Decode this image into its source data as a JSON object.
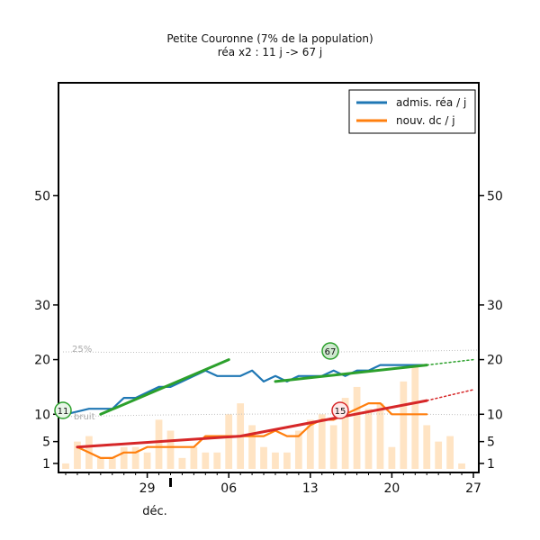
{
  "chart_data": {
    "type": "line",
    "title": "Petite Couronne (7% de la population)",
    "subtitle": "réa x2 : 11 j -> 67 j",
    "xlabel": "",
    "ylabel": "",
    "month_label": "déc.",
    "x_ticks": [
      "29",
      "06",
      "13",
      "20",
      "27"
    ],
    "y_ticks": [
      1,
      5,
      10,
      20,
      30,
      50
    ],
    "ylim": [
      0,
      70
    ],
    "xlim": [
      "2020-11-22",
      "2020-12-27"
    ],
    "legend_position": "top-right",
    "legend": [
      "admis. réa / j",
      "nouv. dc / j"
    ],
    "annotations": {
      "pct25": "25%",
      "noise": "bruit",
      "badge_start": "11",
      "badge_rea": "67",
      "badge_dc": "15"
    },
    "colors": {
      "rea": "#1f77b4",
      "dc": "#ff7f0e",
      "rea_fit": "#2ca02c",
      "dc_fit": "#d62728",
      "bars": "#ffe4c4",
      "band": "#c0c0c0"
    },
    "bars": {
      "x": [
        "2020-11-22",
        "2020-11-23",
        "2020-11-24",
        "2020-11-25",
        "2020-11-26",
        "2020-11-27",
        "2020-11-28",
        "2020-11-29",
        "2020-11-30",
        "2020-12-01",
        "2020-12-02",
        "2020-12-03",
        "2020-12-04",
        "2020-12-05",
        "2020-12-06",
        "2020-12-07",
        "2020-12-08",
        "2020-12-09",
        "2020-12-10",
        "2020-12-11",
        "2020-12-12",
        "2020-12-13",
        "2020-12-14",
        "2020-12-15",
        "2020-12-16",
        "2020-12-17",
        "2020-12-18",
        "2020-12-19",
        "2020-12-20",
        "2020-12-21",
        "2020-12-22",
        "2020-12-23",
        "2020-12-24",
        "2020-12-25",
        "2020-12-26"
      ],
      "values": [
        1,
        5,
        6,
        2,
        2,
        4,
        4,
        3,
        9,
        7,
        2,
        4,
        3,
        3,
        10,
        12,
        8,
        4,
        3,
        3,
        7,
        9,
        10,
        8,
        13,
        15,
        11,
        12,
        4,
        16,
        19,
        8,
        5,
        6,
        1
      ]
    },
    "series": [
      {
        "name": "admis. réa / j",
        "x": [
          "2020-11-22",
          "2020-11-23",
          "2020-11-24",
          "2020-11-25",
          "2020-11-26",
          "2020-11-27",
          "2020-11-28",
          "2020-11-29",
          "2020-11-30",
          "2020-12-01",
          "2020-12-02",
          "2020-12-03",
          "2020-12-04",
          "2020-12-05",
          "2020-12-06",
          "2020-12-07",
          "2020-12-08",
          "2020-12-09",
          "2020-12-10",
          "2020-12-11",
          "2020-12-12",
          "2020-12-13",
          "2020-12-14",
          "2020-12-15",
          "2020-12-16",
          "2020-12-17",
          "2020-12-18",
          "2020-12-19",
          "2020-12-20",
          "2020-12-21",
          "2020-12-22",
          "2020-12-23"
        ],
        "values": [
          10,
          10.5,
          11,
          11,
          11,
          13,
          13,
          14,
          15,
          15,
          16,
          17,
          18,
          17,
          17,
          17,
          18,
          16,
          17,
          16,
          17,
          17,
          17,
          18,
          17,
          18,
          18,
          19,
          19,
          19,
          19,
          19
        ]
      },
      {
        "name": "nouv. dc / j",
        "x": [
          "2020-11-23",
          "2020-11-24",
          "2020-11-25",
          "2020-11-26",
          "2020-11-27",
          "2020-11-28",
          "2020-11-29",
          "2020-11-30",
          "2020-12-01",
          "2020-12-02",
          "2020-12-03",
          "2020-12-04",
          "2020-12-05",
          "2020-12-06",
          "2020-12-07",
          "2020-12-08",
          "2020-12-09",
          "2020-12-10",
          "2020-12-11",
          "2020-12-12",
          "2020-12-13",
          "2020-12-14",
          "2020-12-15",
          "2020-12-16",
          "2020-12-17",
          "2020-12-18",
          "2020-12-19",
          "2020-12-20",
          "2020-12-21",
          "2020-12-22",
          "2020-12-23"
        ],
        "values": [
          4,
          3,
          2,
          2,
          3,
          3,
          4,
          4,
          4,
          4,
          4,
          6,
          6,
          6,
          6,
          6,
          6,
          7,
          6,
          6,
          8,
          9,
          9,
          10,
          11,
          12,
          12,
          10,
          10,
          10,
          10
        ]
      }
    ],
    "fits": {
      "rea_early": {
        "x": [
          "2020-11-25",
          "2020-12-06"
        ],
        "values": [
          10,
          20
        ]
      },
      "rea_late": {
        "x": [
          "2020-12-10",
          "2020-12-23"
        ],
        "values": [
          16,
          19
        ],
        "extrapolate": {
          "x": [
            "2020-12-23",
            "2020-12-27"
          ],
          "values": [
            19,
            20
          ]
        }
      },
      "dc": {
        "x": [
          "2020-11-23",
          "2020-12-07",
          "2020-12-23"
        ],
        "values": [
          4,
          6,
          12.5
        ],
        "extrapolate": {
          "x": [
            "2020-12-23",
            "2020-12-27"
          ],
          "values": [
            12.5,
            14.5
          ]
        }
      }
    }
  }
}
